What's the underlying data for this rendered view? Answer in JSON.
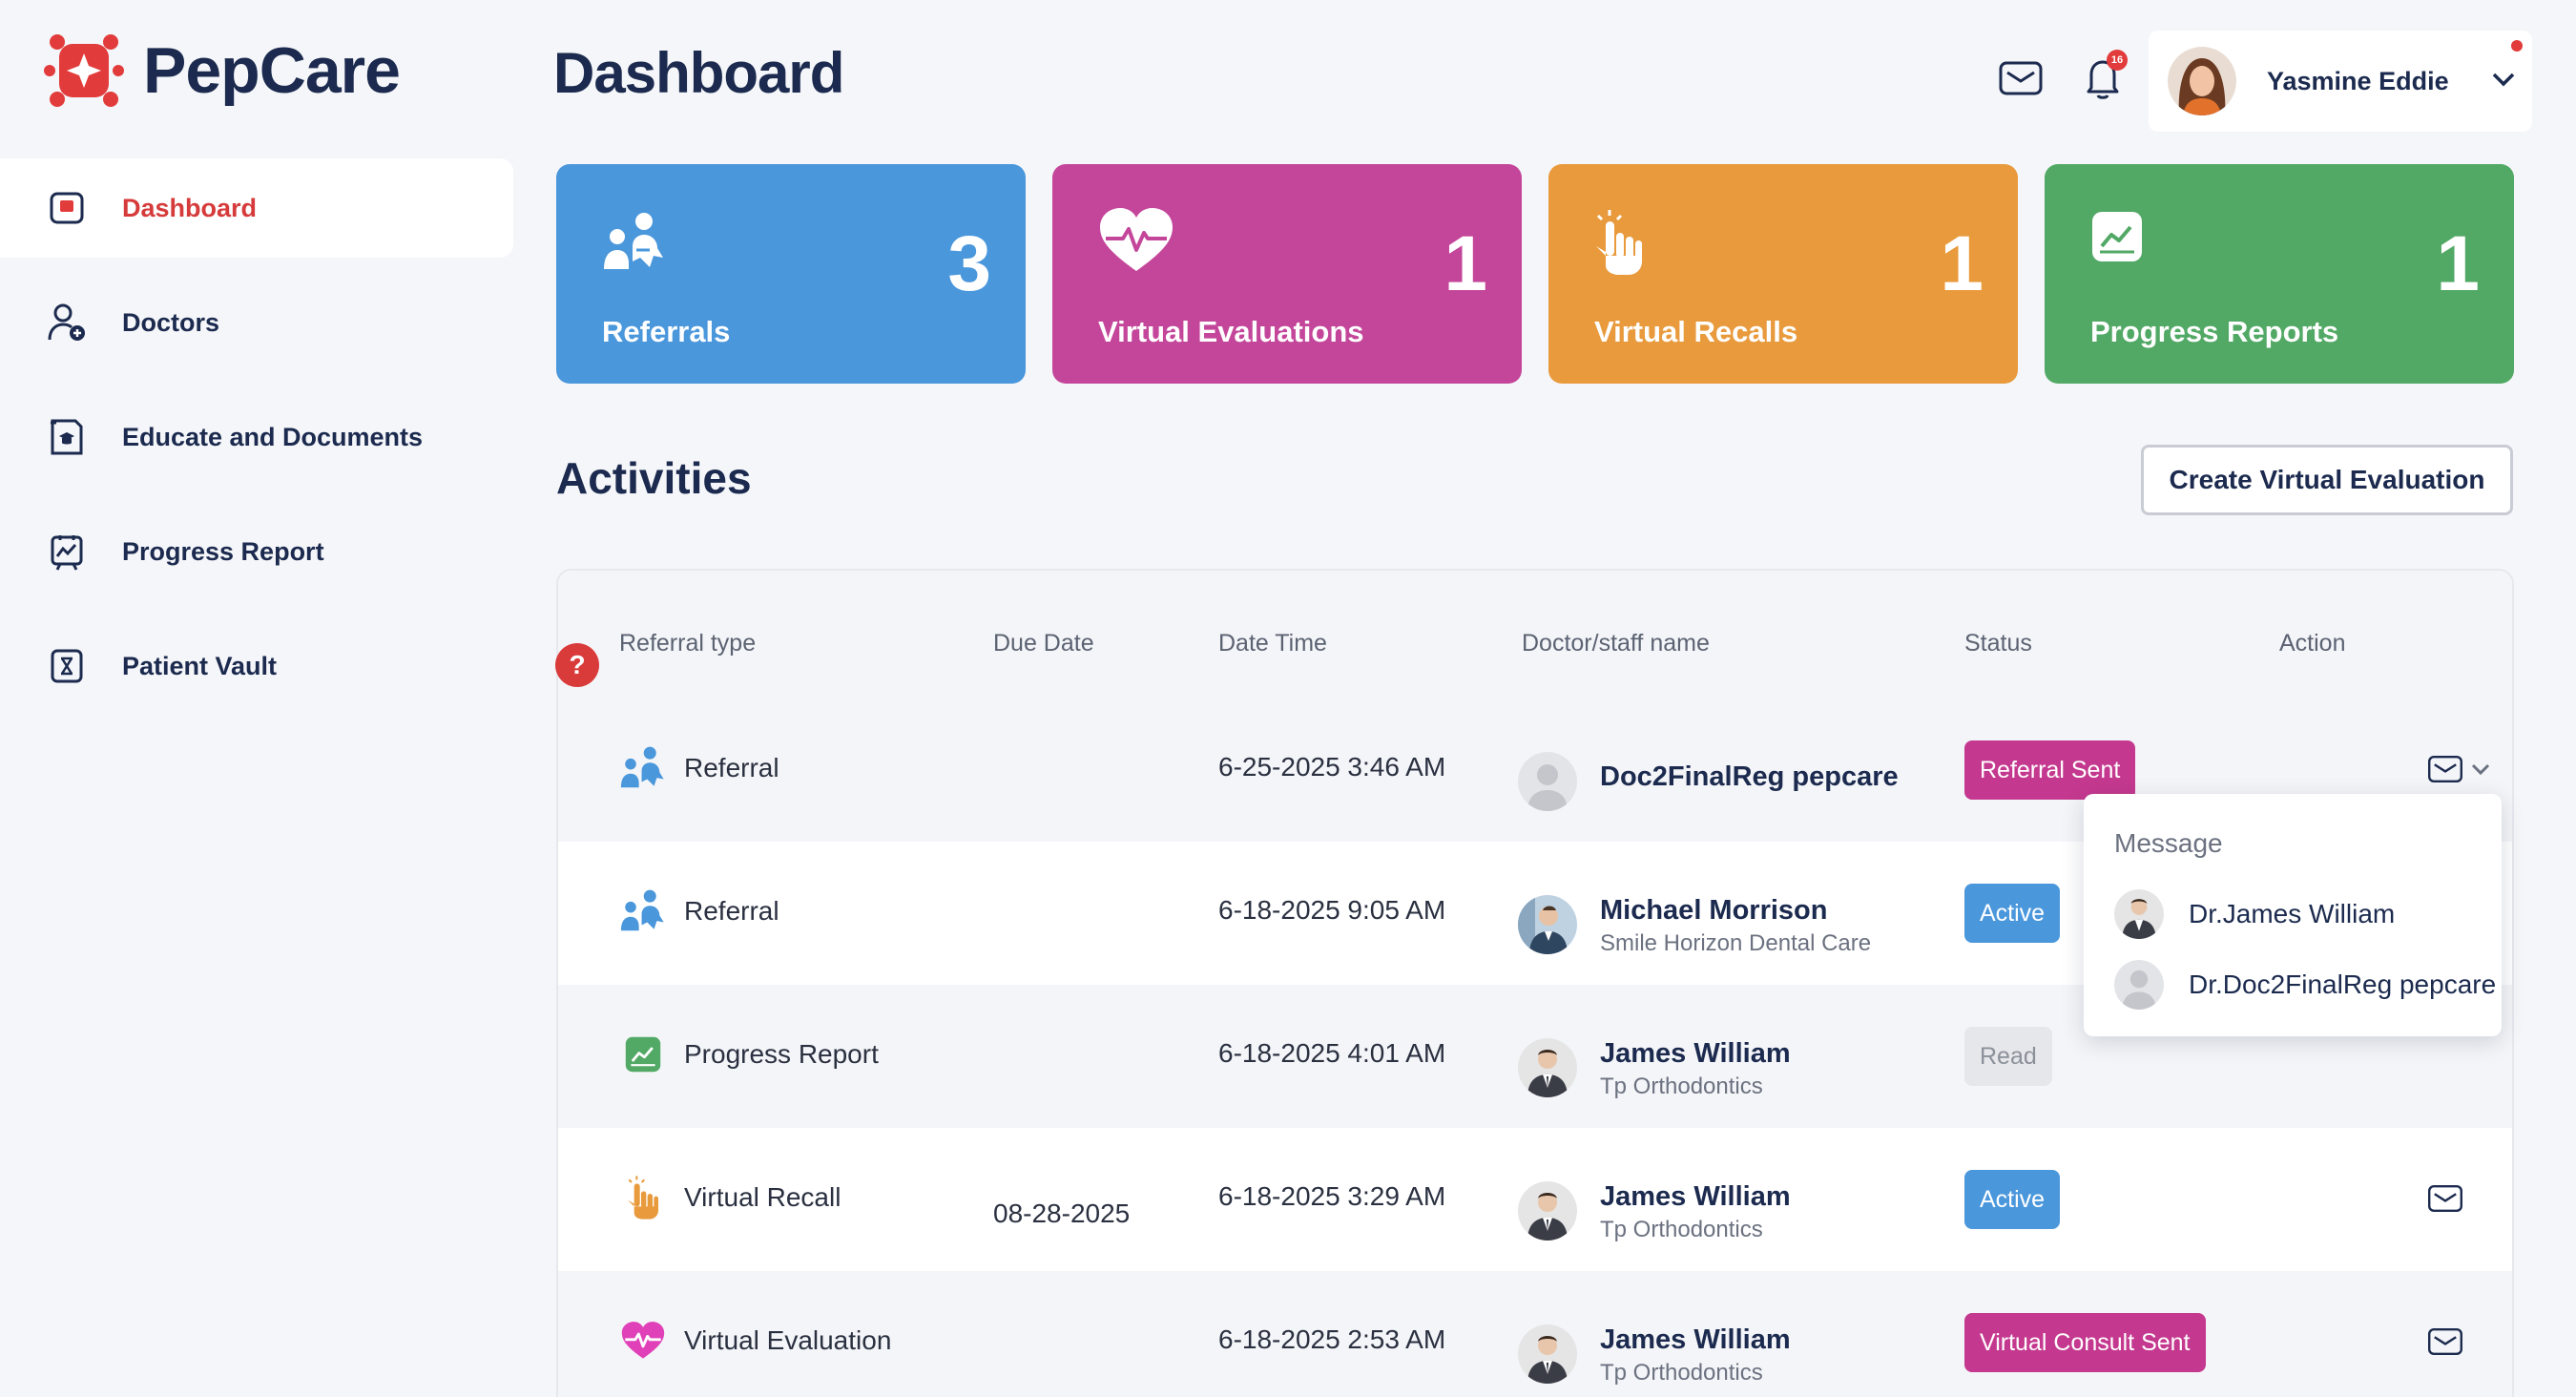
{
  "app": {
    "name": "PepCare",
    "brand_color": "#e23b3b"
  },
  "sidebar": {
    "items": [
      {
        "label": "Dashboard",
        "icon": "dashboard-icon",
        "active": true
      },
      {
        "label": "Doctors",
        "icon": "doctor-add-icon",
        "active": false
      },
      {
        "label": "Educate and Documents",
        "icon": "education-document-icon",
        "active": false
      },
      {
        "label": "Progress Report",
        "icon": "progress-report-icon",
        "active": false
      },
      {
        "label": "Patient Vault",
        "icon": "vault-icon",
        "active": false
      }
    ]
  },
  "header": {
    "title": "Dashboard",
    "notification_count": "16",
    "user": {
      "name": "Yasmine Eddie"
    }
  },
  "cards": [
    {
      "label": "Referrals",
      "value": "3",
      "color": "#4a97dc",
      "icon": "referral-icon"
    },
    {
      "label": "Virtual Evaluations",
      "value": "1",
      "color": "#c4469a",
      "icon": "heartbeat-icon"
    },
    {
      "label": "Virtual Recalls",
      "value": "1",
      "color": "#e89a3c",
      "icon": "hand-tap-icon"
    },
    {
      "label": "Progress Reports",
      "value": "1",
      "color": "#52a965",
      "icon": "chart-trend-icon"
    }
  ],
  "activities": {
    "title": "Activities",
    "create_button": "Create Virtual Evaluation",
    "columns": [
      "Referral type",
      "Due Date",
      "Date Time",
      "Doctor/staff name",
      "Status",
      "Action"
    ],
    "rows": [
      {
        "type": "Referral",
        "icon": "referral-icon",
        "due": "",
        "datetime": "6-25-2025 3:46 AM",
        "doctor": "Doc2FinalReg pepcare",
        "org": "",
        "avatar": "placeholder",
        "status": "Referral Sent",
        "status_style": "pink",
        "action": "message-dropdown"
      },
      {
        "type": "Referral",
        "icon": "referral-icon",
        "due": "",
        "datetime": "6-18-2025 9:05 AM",
        "doctor": "Michael Morrison",
        "org": "Smile Horizon Dental Care",
        "avatar": "photo",
        "status": "Active",
        "status_style": "blue",
        "action": "none"
      },
      {
        "type": "Progress Report",
        "icon": "chart-trend-icon",
        "due": "",
        "datetime": "6-18-2025 4:01 AM",
        "doctor": "James William",
        "org": "Tp Orthodontics",
        "avatar": "photo",
        "status": "Read",
        "status_style": "grey",
        "action": "none"
      },
      {
        "type": "Virtual Recall",
        "icon": "hand-tap-icon",
        "due": "08-28-2025",
        "datetime": "6-18-2025 3:29 AM",
        "doctor": "James William",
        "org": "Tp Orthodontics",
        "avatar": "photo",
        "status": "Active",
        "status_style": "blue",
        "action": "message"
      },
      {
        "type": "Virtual Evaluation",
        "icon": "heartbeat-icon",
        "due": "",
        "datetime": "6-18-2025 2:53 AM",
        "doctor": "James William",
        "org": "Tp Orthodontics",
        "avatar": "photo",
        "status": "Virtual Consult Sent",
        "status_style": "pink",
        "action": "message"
      }
    ]
  },
  "message_dropdown": {
    "title": "Message",
    "items": [
      {
        "label": "Dr.James William",
        "avatar": "photo"
      },
      {
        "label": "Dr.Doc2FinalReg pepcare",
        "avatar": "placeholder"
      }
    ]
  }
}
